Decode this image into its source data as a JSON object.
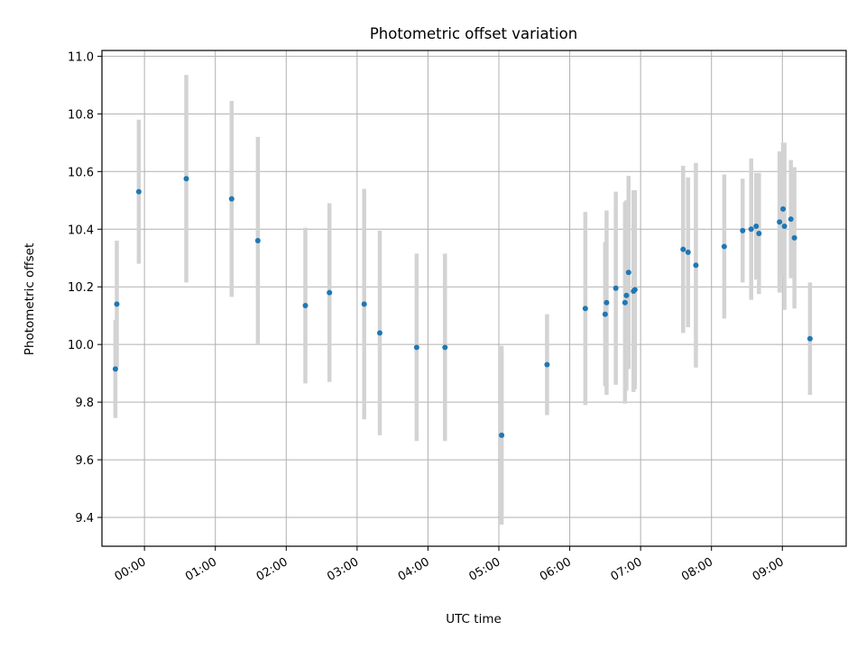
{
  "chart_data": {
    "type": "scatter",
    "title": "Photometric offset variation",
    "xlabel": "UTC time",
    "ylabel": "Photometric offset",
    "xlim": [
      "-0.6",
      "9.9"
    ],
    "x_unit": "hours UTC",
    "ylim": [
      9.3,
      11.02
    ],
    "grid": true,
    "x_ticks": [
      {
        "value": 0,
        "label": "00:00"
      },
      {
        "value": 1,
        "label": "01:00"
      },
      {
        "value": 2,
        "label": "02:00"
      },
      {
        "value": 3,
        "label": "03:00"
      },
      {
        "value": 4,
        "label": "04:00"
      },
      {
        "value": 5,
        "label": "05:00"
      },
      {
        "value": 6,
        "label": "06:00"
      },
      {
        "value": 7,
        "label": "07:00"
      },
      {
        "value": 8,
        "label": "08:00"
      },
      {
        "value": 9,
        "label": "09:00"
      }
    ],
    "y_ticks": [
      {
        "value": 9.4,
        "label": "9.4"
      },
      {
        "value": 9.6,
        "label": "9.6"
      },
      {
        "value": 9.8,
        "label": "9.8"
      },
      {
        "value": 10.0,
        "label": "10.0"
      },
      {
        "value": 10.2,
        "label": "10.2"
      },
      {
        "value": 10.4,
        "label": "10.4"
      },
      {
        "value": 10.6,
        "label": "10.6"
      },
      {
        "value": 10.8,
        "label": "10.8"
      },
      {
        "value": 11.0,
        "label": "11.0"
      }
    ],
    "points": [
      {
        "x": -0.41,
        "y": 9.915,
        "err": 0.17
      },
      {
        "x": -0.39,
        "y": 10.14,
        "err": 0.22
      },
      {
        "x": -0.08,
        "y": 10.53,
        "err": 0.25
      },
      {
        "x": 0.59,
        "y": 10.575,
        "err": 0.36
      },
      {
        "x": 1.23,
        "y": 10.505,
        "err": 0.34
      },
      {
        "x": 1.6,
        "y": 10.36,
        "err": 0.36
      },
      {
        "x": 2.27,
        "y": 10.135,
        "err": 0.27
      },
      {
        "x": 2.61,
        "y": 10.18,
        "err": 0.31
      },
      {
        "x": 3.1,
        "y": 10.14,
        "err": 0.4
      },
      {
        "x": 3.32,
        "y": 10.04,
        "err": 0.355
      },
      {
        "x": 3.84,
        "y": 9.99,
        "err": 0.325
      },
      {
        "x": 4.24,
        "y": 9.99,
        "err": 0.325
      },
      {
        "x": 5.04,
        "y": 9.685,
        "err": 0.31
      },
      {
        "x": 5.68,
        "y": 9.93,
        "err": 0.175
      },
      {
        "x": 6.22,
        "y": 10.125,
        "err": 0.335
      },
      {
        "x": 6.5,
        "y": 10.105,
        "err": 0.25
      },
      {
        "x": 6.52,
        "y": 10.145,
        "err": 0.32
      },
      {
        "x": 6.65,
        "y": 10.195,
        "err": 0.335
      },
      {
        "x": 6.78,
        "y": 10.145,
        "err": 0.35
      },
      {
        "x": 6.8,
        "y": 10.17,
        "err": 0.33
      },
      {
        "x": 6.83,
        "y": 10.25,
        "err": 0.335
      },
      {
        "x": 6.9,
        "y": 10.185,
        "err": 0.35
      },
      {
        "x": 6.92,
        "y": 10.19,
        "err": 0.345
      },
      {
        "x": 7.6,
        "y": 10.33,
        "err": 0.29
      },
      {
        "x": 7.67,
        "y": 10.32,
        "err": 0.26
      },
      {
        "x": 7.78,
        "y": 10.275,
        "err": 0.355
      },
      {
        "x": 8.18,
        "y": 10.34,
        "err": 0.25
      },
      {
        "x": 8.44,
        "y": 10.395,
        "err": 0.18
      },
      {
        "x": 8.56,
        "y": 10.4,
        "err": 0.245
      },
      {
        "x": 8.63,
        "y": 10.41,
        "err": 0.185
      },
      {
        "x": 8.67,
        "y": 10.385,
        "err": 0.21
      },
      {
        "x": 8.96,
        "y": 10.425,
        "err": 0.245
      },
      {
        "x": 9.01,
        "y": 10.47,
        "err": 0.23
      },
      {
        "x": 9.03,
        "y": 10.41,
        "err": 0.29
      },
      {
        "x": 9.12,
        "y": 10.435,
        "err": 0.205
      },
      {
        "x": 9.17,
        "y": 10.37,
        "err": 0.245
      },
      {
        "x": 9.39,
        "y": 10.02,
        "err": 0.195
      }
    ]
  }
}
